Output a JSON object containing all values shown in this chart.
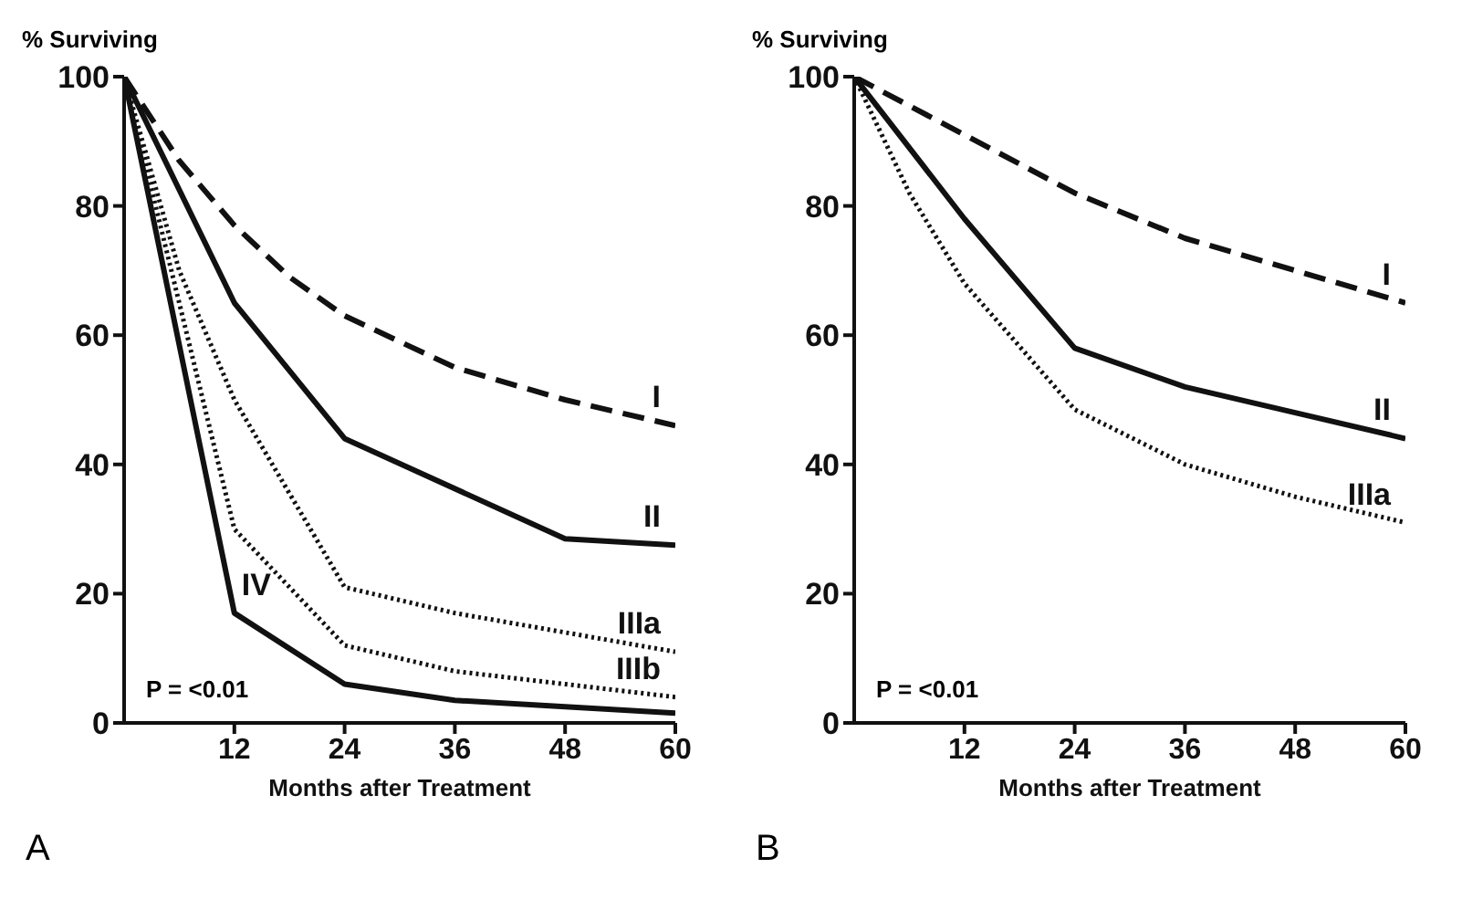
{
  "chart_data": [
    {
      "type": "line",
      "ylabel": "% Surviving",
      "xlabel": "Months after Treatment",
      "xlim": [
        0,
        60
      ],
      "xticks": [
        12,
        24,
        36,
        48,
        60
      ],
      "ylim": [
        0,
        100
      ],
      "yticks": [
        0,
        20,
        40,
        60,
        80,
        100
      ],
      "marker": "none",
      "annotations": [
        "P = <0.01",
        "A"
      ],
      "series": [
        {
          "name": "I",
          "color": "#111111",
          "line_style": "dashed",
          "x": [
            0,
            6,
            12,
            18,
            24,
            36,
            48,
            60
          ],
          "values": [
            100,
            87,
            77,
            69,
            63,
            55,
            50,
            46
          ]
        },
        {
          "name": "II",
          "color": "#111111",
          "line_style": "solid",
          "x": [
            0,
            12,
            24,
            48,
            60
          ],
          "values": [
            100,
            65,
            44,
            28.5,
            27.5
          ]
        },
        {
          "name": "IIIa",
          "color": "#111111",
          "line_style": "dotted",
          "x": [
            0,
            6,
            12,
            24,
            36,
            48,
            60
          ],
          "values": [
            100,
            70,
            50,
            21,
            17,
            14,
            11
          ]
        },
        {
          "name": "IIIb",
          "color": "#111111",
          "line_style": "dotted",
          "x": [
            0,
            12,
            24,
            36,
            48,
            60
          ],
          "values": [
            100,
            30,
            12,
            8,
            6,
            4
          ]
        },
        {
          "name": "IV",
          "color": "#111111",
          "line_style": "solid",
          "x": [
            0,
            12,
            24,
            36,
            48,
            60
          ],
          "values": [
            100,
            17,
            6,
            3.5,
            2.5,
            1.5
          ]
        }
      ]
    },
    {
      "type": "line",
      "ylabel": "% Surviving",
      "xlabel": "Months after Treatment",
      "xlim": [
        0,
        60
      ],
      "xticks": [
        12,
        24,
        36,
        48,
        60
      ],
      "ylim": [
        0,
        100
      ],
      "yticks": [
        0,
        20,
        40,
        60,
        80,
        100
      ],
      "marker": "none",
      "annotations": [
        "P = <0.01",
        "B"
      ],
      "series": [
        {
          "name": "I",
          "color": "#111111",
          "line_style": "dashed",
          "x": [
            0,
            12,
            24,
            36,
            48,
            60
          ],
          "values": [
            100,
            91,
            82,
            75,
            70,
            65
          ]
        },
        {
          "name": "II",
          "color": "#111111",
          "line_style": "solid",
          "x": [
            0,
            12,
            24,
            36,
            48,
            60
          ],
          "values": [
            100,
            78,
            58,
            52,
            48,
            44
          ]
        },
        {
          "name": "IIIa",
          "color": "#111111",
          "line_style": "dotted",
          "x": [
            0,
            6,
            12,
            24,
            36,
            48,
            60
          ],
          "values": [
            100,
            82,
            68,
            48.5,
            40,
            35,
            31
          ]
        }
      ]
    }
  ]
}
